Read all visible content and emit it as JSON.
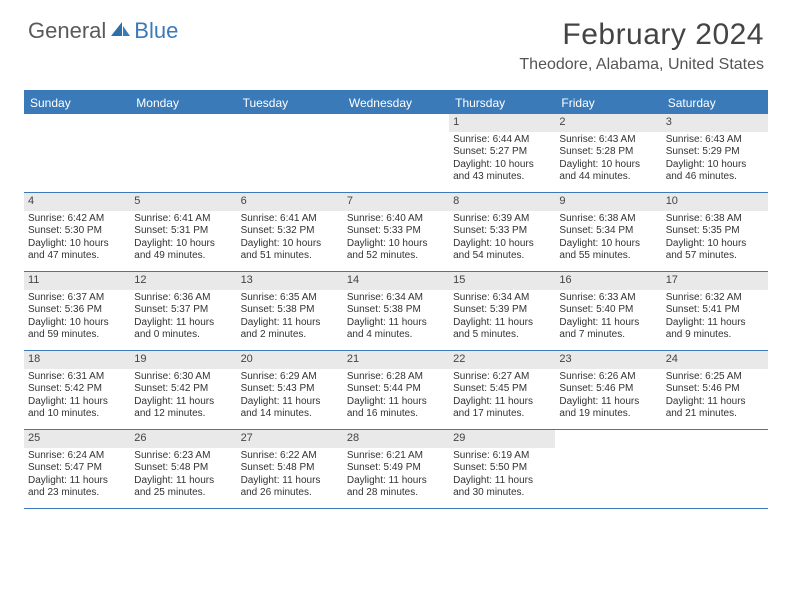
{
  "logo": {
    "general": "General",
    "blue": "Blue"
  },
  "title": "February 2024",
  "location": "Theodore, Alabama, United States",
  "accent_color": "#3a7ab8",
  "daynum_bg": "#e9e9e9",
  "text_color": "#333333",
  "dow": [
    "Sunday",
    "Monday",
    "Tuesday",
    "Wednesday",
    "Thursday",
    "Friday",
    "Saturday"
  ],
  "weeks": [
    [
      {
        "n": "",
        "sr": "",
        "ss": "",
        "dl": ""
      },
      {
        "n": "",
        "sr": "",
        "ss": "",
        "dl": ""
      },
      {
        "n": "",
        "sr": "",
        "ss": "",
        "dl": ""
      },
      {
        "n": "",
        "sr": "",
        "ss": "",
        "dl": ""
      },
      {
        "n": "1",
        "sr": "Sunrise: 6:44 AM",
        "ss": "Sunset: 5:27 PM",
        "dl": "Daylight: 10 hours and 43 minutes."
      },
      {
        "n": "2",
        "sr": "Sunrise: 6:43 AM",
        "ss": "Sunset: 5:28 PM",
        "dl": "Daylight: 10 hours and 44 minutes."
      },
      {
        "n": "3",
        "sr": "Sunrise: 6:43 AM",
        "ss": "Sunset: 5:29 PM",
        "dl": "Daylight: 10 hours and 46 minutes."
      }
    ],
    [
      {
        "n": "4",
        "sr": "Sunrise: 6:42 AM",
        "ss": "Sunset: 5:30 PM",
        "dl": "Daylight: 10 hours and 47 minutes."
      },
      {
        "n": "5",
        "sr": "Sunrise: 6:41 AM",
        "ss": "Sunset: 5:31 PM",
        "dl": "Daylight: 10 hours and 49 minutes."
      },
      {
        "n": "6",
        "sr": "Sunrise: 6:41 AM",
        "ss": "Sunset: 5:32 PM",
        "dl": "Daylight: 10 hours and 51 minutes."
      },
      {
        "n": "7",
        "sr": "Sunrise: 6:40 AM",
        "ss": "Sunset: 5:33 PM",
        "dl": "Daylight: 10 hours and 52 minutes."
      },
      {
        "n": "8",
        "sr": "Sunrise: 6:39 AM",
        "ss": "Sunset: 5:33 PM",
        "dl": "Daylight: 10 hours and 54 minutes."
      },
      {
        "n": "9",
        "sr": "Sunrise: 6:38 AM",
        "ss": "Sunset: 5:34 PM",
        "dl": "Daylight: 10 hours and 55 minutes."
      },
      {
        "n": "10",
        "sr": "Sunrise: 6:38 AM",
        "ss": "Sunset: 5:35 PM",
        "dl": "Daylight: 10 hours and 57 minutes."
      }
    ],
    [
      {
        "n": "11",
        "sr": "Sunrise: 6:37 AM",
        "ss": "Sunset: 5:36 PM",
        "dl": "Daylight: 10 hours and 59 minutes."
      },
      {
        "n": "12",
        "sr": "Sunrise: 6:36 AM",
        "ss": "Sunset: 5:37 PM",
        "dl": "Daylight: 11 hours and 0 minutes."
      },
      {
        "n": "13",
        "sr": "Sunrise: 6:35 AM",
        "ss": "Sunset: 5:38 PM",
        "dl": "Daylight: 11 hours and 2 minutes."
      },
      {
        "n": "14",
        "sr": "Sunrise: 6:34 AM",
        "ss": "Sunset: 5:38 PM",
        "dl": "Daylight: 11 hours and 4 minutes."
      },
      {
        "n": "15",
        "sr": "Sunrise: 6:34 AM",
        "ss": "Sunset: 5:39 PM",
        "dl": "Daylight: 11 hours and 5 minutes."
      },
      {
        "n": "16",
        "sr": "Sunrise: 6:33 AM",
        "ss": "Sunset: 5:40 PM",
        "dl": "Daylight: 11 hours and 7 minutes."
      },
      {
        "n": "17",
        "sr": "Sunrise: 6:32 AM",
        "ss": "Sunset: 5:41 PM",
        "dl": "Daylight: 11 hours and 9 minutes."
      }
    ],
    [
      {
        "n": "18",
        "sr": "Sunrise: 6:31 AM",
        "ss": "Sunset: 5:42 PM",
        "dl": "Daylight: 11 hours and 10 minutes."
      },
      {
        "n": "19",
        "sr": "Sunrise: 6:30 AM",
        "ss": "Sunset: 5:42 PM",
        "dl": "Daylight: 11 hours and 12 minutes."
      },
      {
        "n": "20",
        "sr": "Sunrise: 6:29 AM",
        "ss": "Sunset: 5:43 PM",
        "dl": "Daylight: 11 hours and 14 minutes."
      },
      {
        "n": "21",
        "sr": "Sunrise: 6:28 AM",
        "ss": "Sunset: 5:44 PM",
        "dl": "Daylight: 11 hours and 16 minutes."
      },
      {
        "n": "22",
        "sr": "Sunrise: 6:27 AM",
        "ss": "Sunset: 5:45 PM",
        "dl": "Daylight: 11 hours and 17 minutes."
      },
      {
        "n": "23",
        "sr": "Sunrise: 6:26 AM",
        "ss": "Sunset: 5:46 PM",
        "dl": "Daylight: 11 hours and 19 minutes."
      },
      {
        "n": "24",
        "sr": "Sunrise: 6:25 AM",
        "ss": "Sunset: 5:46 PM",
        "dl": "Daylight: 11 hours and 21 minutes."
      }
    ],
    [
      {
        "n": "25",
        "sr": "Sunrise: 6:24 AM",
        "ss": "Sunset: 5:47 PM",
        "dl": "Daylight: 11 hours and 23 minutes."
      },
      {
        "n": "26",
        "sr": "Sunrise: 6:23 AM",
        "ss": "Sunset: 5:48 PM",
        "dl": "Daylight: 11 hours and 25 minutes."
      },
      {
        "n": "27",
        "sr": "Sunrise: 6:22 AM",
        "ss": "Sunset: 5:48 PM",
        "dl": "Daylight: 11 hours and 26 minutes."
      },
      {
        "n": "28",
        "sr": "Sunrise: 6:21 AM",
        "ss": "Sunset: 5:49 PM",
        "dl": "Daylight: 11 hours and 28 minutes."
      },
      {
        "n": "29",
        "sr": "Sunrise: 6:19 AM",
        "ss": "Sunset: 5:50 PM",
        "dl": "Daylight: 11 hours and 30 minutes."
      },
      {
        "n": "",
        "sr": "",
        "ss": "",
        "dl": ""
      },
      {
        "n": "",
        "sr": "",
        "ss": "",
        "dl": ""
      }
    ]
  ]
}
